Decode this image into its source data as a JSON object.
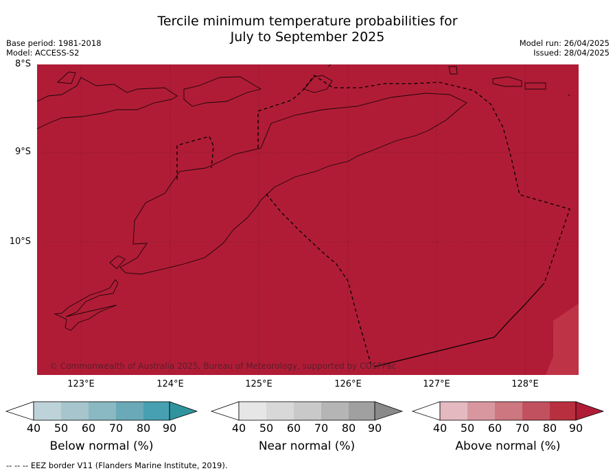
{
  "title_line1": "Tercile minimum temperature probabilities for",
  "title_line2": "July to September 2025",
  "base_period": "Base period: 1981-2018",
  "model": "Model: ACCESS-S2",
  "model_run": "Model run: 26/04/2025",
  "issued": "Issued: 28/04/2025",
  "copyright": "© Commonwealth of Australia 2025, Bureau of Meteorology, supported by COSPPac",
  "lat_labels": [
    "8°S",
    "9°S",
    "10°S"
  ],
  "lon_labels": [
    "123°E",
    "124°E",
    "125°E",
    "126°E",
    "127°E",
    "128°E"
  ],
  "map_colors": {
    "above_90": "#b01c36",
    "above_80": "#bf3347"
  },
  "colorbars": [
    {
      "label": "Below normal (%)",
      "ticks": [
        "40",
        "50",
        "60",
        "70",
        "80",
        "90"
      ],
      "colors": [
        "#bed2da",
        "#a6c5cc",
        "#8ab9c3",
        "#6aa9b7",
        "#47a0b1",
        "#30949f"
      ]
    },
    {
      "label": "Near normal (%)",
      "ticks": [
        "40",
        "50",
        "60",
        "70",
        "80",
        "90"
      ],
      "colors": [
        "#e6e6e6",
        "#d8d8d8",
        "#c9c9c9",
        "#b5b5b5",
        "#a0a0a0",
        "#8a8a8a"
      ]
    },
    {
      "label": "Above normal (%)",
      "ticks": [
        "40",
        "50",
        "60",
        "70",
        "80",
        "90"
      ],
      "colors": [
        "#e4b9c0",
        "#d8979f",
        "#cd7780",
        "#c2515f",
        "#b8303f",
        "#b01c36"
      ]
    }
  ],
  "footer": "--  --  -- EEZ border V11 (Flanders Marine Institute, 2019)."
}
